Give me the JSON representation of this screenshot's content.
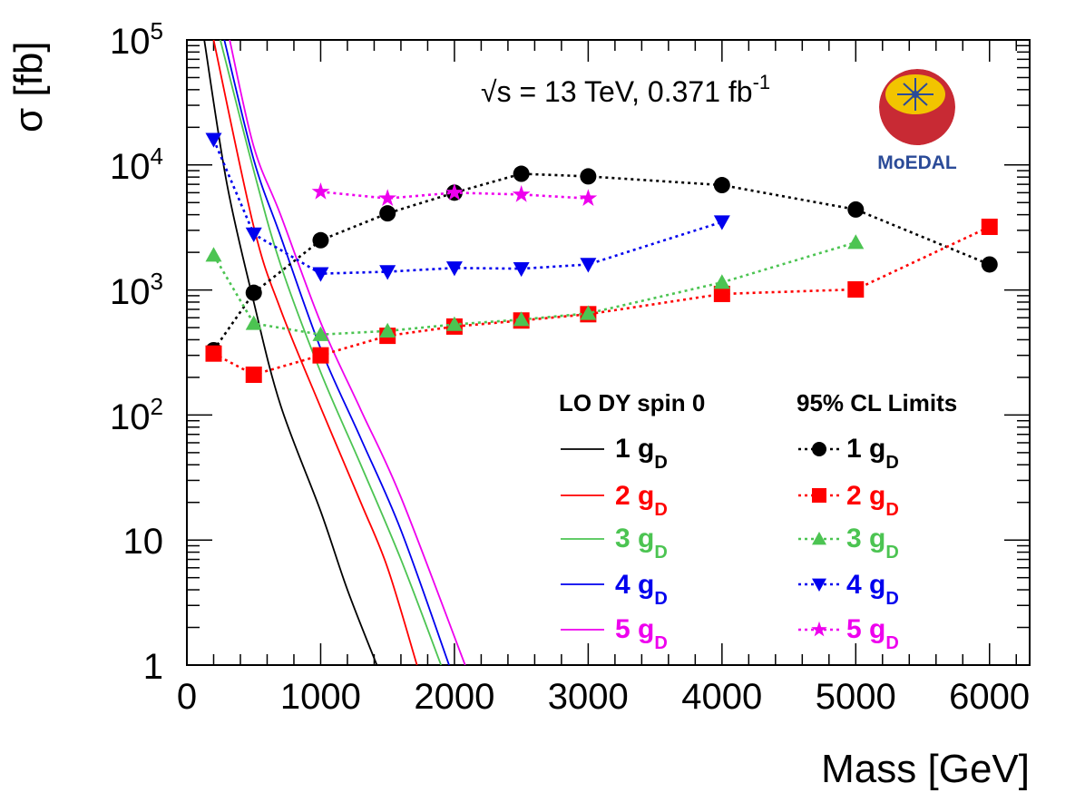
{
  "chart_data": {
    "type": "line",
    "xlabel": "Mass [GeV]",
    "ylabel": "σ [fb]",
    "yscale": "log",
    "xlim": [
      0,
      6300
    ],
    "ylim": [
      1,
      100000
    ],
    "x_ticks": [
      "0",
      "1000",
      "2000",
      "3000",
      "4000",
      "5000",
      "6000"
    ],
    "y_ticks": [
      {
        "base": "10",
        "exp": "5"
      },
      {
        "base": "10",
        "exp": "4"
      },
      {
        "base": "10",
        "exp": "3"
      },
      {
        "base": "10",
        "exp": "2"
      },
      {
        "base": "10",
        "exp": ""
      },
      {
        "base": "1",
        "exp": ""
      }
    ],
    "annotation": {
      "sqrt": "√s",
      "energy": " = 13 TeV, 0.371 fb",
      "lumi_exp": "-1"
    },
    "logo_text": "MoEDAL",
    "legend": {
      "left_title": "LO DY spin 0",
      "right_title": "95% CL Limits",
      "label_main": [
        "1 g",
        "2 g",
        "3 g",
        "4 g",
        "5 g"
      ],
      "label_sub": "D"
    },
    "theory_series": [
      {
        "name": "1 gD",
        "color": "#000000",
        "x": [
          130,
          300,
          500,
          700,
          1000,
          1200,
          1420
        ],
        "y": [
          100000,
          7000,
          800,
          120,
          17,
          4,
          1
        ]
      },
      {
        "name": "2 gD",
        "color": "#ff0000",
        "x": [
          200,
          500,
          700,
          1000,
          1300,
          1500,
          1720
        ],
        "y": [
          100000,
          3200,
          700,
          115,
          20,
          6,
          1
        ]
      },
      {
        "name": "3 gD",
        "color": "#4cc452",
        "x": [
          250,
          500,
          700,
          1000,
          1300,
          1600,
          1900
        ],
        "y": [
          100000,
          9000,
          1600,
          220,
          40,
          7,
          1
        ]
      },
      {
        "name": "4 gD",
        "color": "#0000ee",
        "x": [
          280,
          500,
          700,
          1000,
          1300,
          1600,
          1960
        ],
        "y": [
          100000,
          11000,
          2700,
          340,
          65,
          12,
          1
        ]
      },
      {
        "name": "5 gD",
        "color": "#ee00ee",
        "x": [
          320,
          500,
          700,
          1000,
          1300,
          1600,
          2080
        ],
        "y": [
          100000,
          14000,
          4000,
          550,
          110,
          22,
          1
        ]
      }
    ],
    "limit_series": [
      {
        "name": "1 gD",
        "color": "#000000",
        "marker": "circle",
        "x": [
          200,
          500,
          1000,
          1500,
          2000,
          2500,
          3000,
          4000,
          5000,
          6000
        ],
        "y": [
          330,
          950,
          2500,
          4100,
          6000,
          8500,
          8100,
          6900,
          4400,
          1600
        ]
      },
      {
        "name": "2 gD",
        "color": "#ff0000",
        "marker": "square",
        "x": [
          200,
          500,
          1000,
          1500,
          2000,
          2500,
          3000,
          4000,
          5000,
          6000
        ],
        "y": [
          310,
          210,
          300,
          430,
          510,
          570,
          640,
          930,
          1010,
          3200
        ]
      },
      {
        "name": "3 gD",
        "color": "#4cc452",
        "marker": "triangle-up",
        "x": [
          200,
          500,
          1000,
          1500,
          2000,
          2500,
          3000,
          4000,
          5000
        ],
        "y": [
          1900,
          540,
          440,
          470,
          530,
          580,
          650,
          1150,
          2400
        ]
      },
      {
        "name": "4 gD",
        "color": "#0000ee",
        "marker": "triangle-down",
        "x": [
          200,
          500,
          1000,
          1500,
          2000,
          2500,
          3000,
          4000
        ],
        "y": [
          16000,
          2800,
          1350,
          1400,
          1500,
          1480,
          1600,
          3500
        ]
      },
      {
        "name": "5 gD",
        "color": "#ee00ee",
        "marker": "star",
        "x": [
          1000,
          1500,
          2000,
          2500,
          3000
        ],
        "y": [
          6100,
          5400,
          6000,
          5800,
          5400
        ]
      }
    ]
  }
}
